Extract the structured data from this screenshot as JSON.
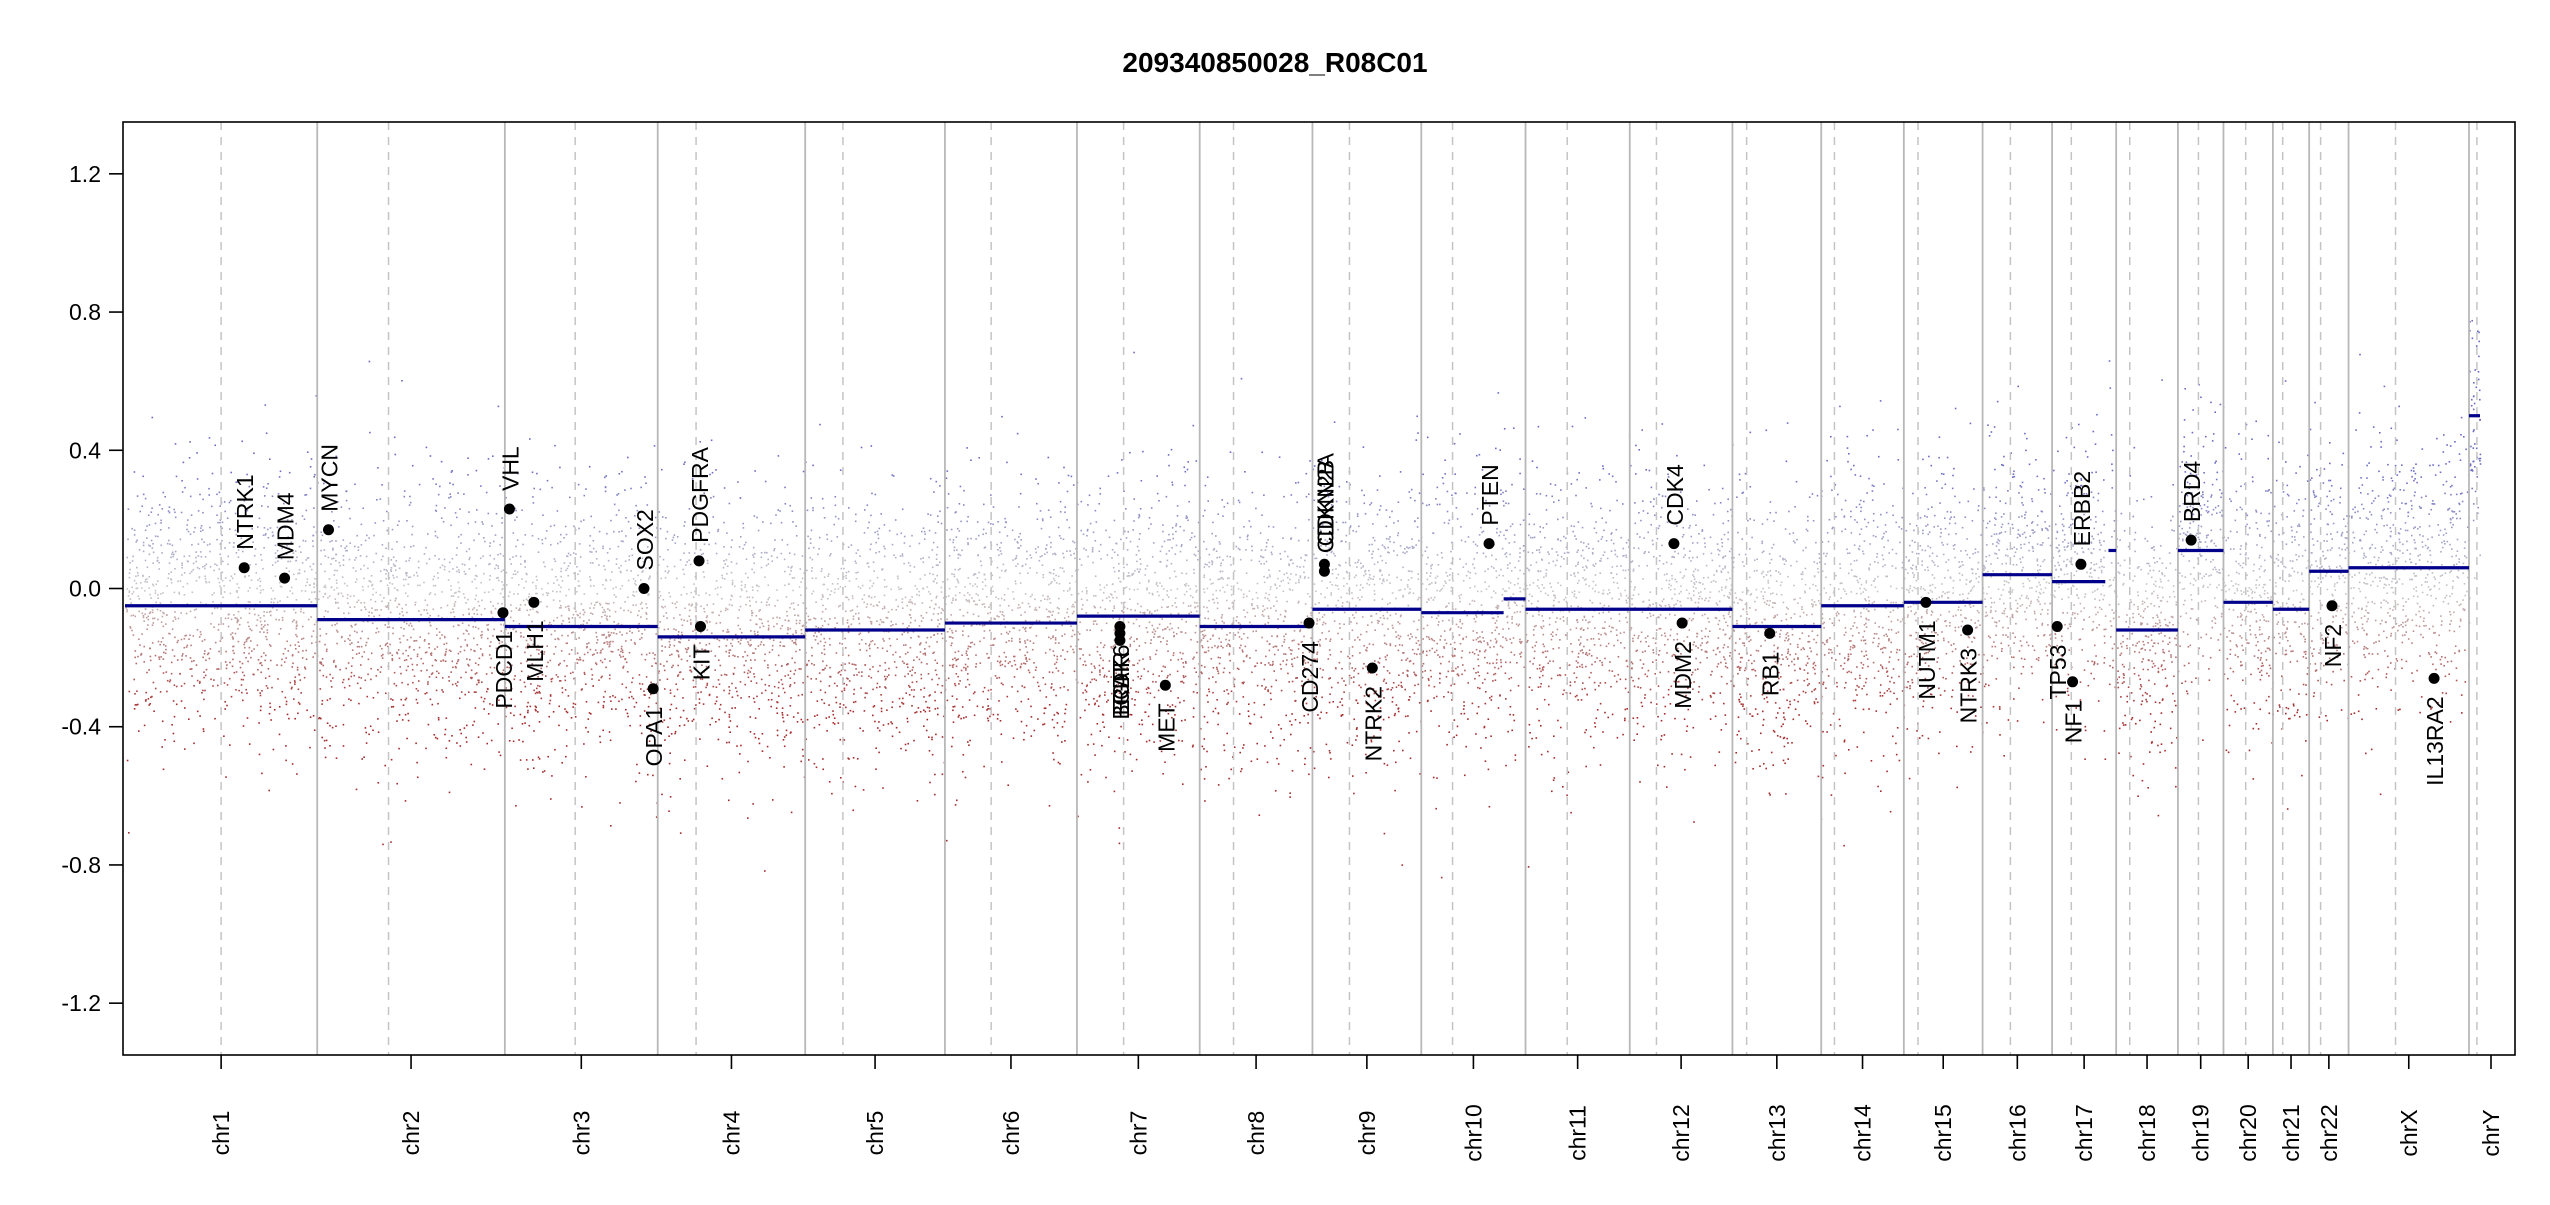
{
  "chart_data": {
    "type": "scatter",
    "title": "209340850028_R08C01",
    "xlabel": "",
    "ylabel": "",
    "ylim": [
      -1.35,
      1.35
    ],
    "y_ticks": [
      -1.2,
      -0.8,
      -0.4,
      0.0,
      0.4,
      0.8,
      1.2
    ],
    "y_tick_labels": [
      "-1.2",
      "-0.8",
      "-0.4",
      "0.0",
      "0.4",
      "0.8",
      "1.2"
    ],
    "chromosomes": [
      {
        "name": "chr1",
        "length": 249,
        "centromere": 0.5
      },
      {
        "name": "chr2",
        "length": 243,
        "centromere": 0.38
      },
      {
        "name": "chr3",
        "length": 198,
        "centromere": 0.46
      },
      {
        "name": "chr4",
        "length": 191,
        "centromere": 0.26
      },
      {
        "name": "chr5",
        "length": 181,
        "centromere": 0.27
      },
      {
        "name": "chr6",
        "length": 171,
        "centromere": 0.35
      },
      {
        "name": "chr7",
        "length": 159,
        "centromere": 0.38
      },
      {
        "name": "chr8",
        "length": 146,
        "centromere": 0.3
      },
      {
        "name": "chr9",
        "length": 141,
        "centromere": 0.34
      },
      {
        "name": "chr10",
        "length": 135,
        "centromere": 0.3
      },
      {
        "name": "chr11",
        "length": 135,
        "centromere": 0.4
      },
      {
        "name": "chr12",
        "length": 133,
        "centromere": 0.26
      },
      {
        "name": "chr13",
        "length": 115,
        "centromere": 0.16
      },
      {
        "name": "chr14",
        "length": 107,
        "centromere": 0.16
      },
      {
        "name": "chr15",
        "length": 102,
        "centromere": 0.18
      },
      {
        "name": "chr16",
        "length": 90,
        "centromere": 0.4
      },
      {
        "name": "chr17",
        "length": 83,
        "centromere": 0.3
      },
      {
        "name": "chr18",
        "length": 80,
        "centromere": 0.22
      },
      {
        "name": "chr19",
        "length": 59,
        "centromere": 0.45
      },
      {
        "name": "chr20",
        "length": 64,
        "centromere": 0.45
      },
      {
        "name": "chr21",
        "length": 47,
        "centromere": 0.27
      },
      {
        "name": "chr22",
        "length": 51,
        "centromere": 0.29
      },
      {
        "name": "chrX",
        "length": 156,
        "centromere": 0.39
      },
      {
        "name": "chrY",
        "length": 57,
        "centromere": 0.18
      }
    ],
    "segments": [
      {
        "chr": "chr1",
        "start": 0.0,
        "end": 1.0,
        "value": -0.05
      },
      {
        "chr": "chr2",
        "start": 0.0,
        "end": 1.0,
        "value": -0.09
      },
      {
        "chr": "chr3",
        "start": 0.0,
        "end": 1.0,
        "value": -0.11
      },
      {
        "chr": "chr4",
        "start": 0.0,
        "end": 1.0,
        "value": -0.14
      },
      {
        "chr": "chr5",
        "start": 0.0,
        "end": 1.0,
        "value": -0.12
      },
      {
        "chr": "chr6",
        "start": 0.0,
        "end": 1.0,
        "value": -0.1
      },
      {
        "chr": "chr7",
        "start": 0.0,
        "end": 1.0,
        "value": -0.08
      },
      {
        "chr": "chr8",
        "start": 0.0,
        "end": 1.0,
        "value": -0.11
      },
      {
        "chr": "chr9",
        "start": 0.0,
        "end": 1.0,
        "value": -0.06
      },
      {
        "chr": "chr10",
        "start": 0.0,
        "end": 0.79,
        "value": -0.07
      },
      {
        "chr": "chr10",
        "start": 0.79,
        "end": 1.0,
        "value": -0.03
      },
      {
        "chr": "chr11",
        "start": 0.0,
        "end": 1.0,
        "value": -0.06
      },
      {
        "chr": "chr12",
        "start": 0.0,
        "end": 1.0,
        "value": -0.06
      },
      {
        "chr": "chr13",
        "start": 0.0,
        "end": 1.0,
        "value": -0.11
      },
      {
        "chr": "chr14",
        "start": 0.0,
        "end": 1.0,
        "value": -0.05
      },
      {
        "chr": "chr15",
        "start": 0.0,
        "end": 1.0,
        "value": -0.04
      },
      {
        "chr": "chr16",
        "start": 0.0,
        "end": 1.0,
        "value": 0.04
      },
      {
        "chr": "chr17",
        "start": 0.0,
        "end": 0.83,
        "value": 0.02
      },
      {
        "chr": "chr17",
        "start": 0.88,
        "end": 1.0,
        "value": 0.11
      },
      {
        "chr": "chr18",
        "start": 0.0,
        "end": 1.0,
        "value": -0.12
      },
      {
        "chr": "chr19",
        "start": 0.0,
        "end": 1.0,
        "value": 0.11
      },
      {
        "chr": "chr20",
        "start": 0.0,
        "end": 1.0,
        "value": -0.04
      },
      {
        "chr": "chr21",
        "start": 0.0,
        "end": 1.0,
        "value": -0.06
      },
      {
        "chr": "chr22",
        "start": 0.0,
        "end": 1.0,
        "value": 0.05
      },
      {
        "chrs": "chrX",
        "chr": "chrX",
        "start": 0.0,
        "end": 1.0,
        "value": 0.06
      },
      {
        "chr": "chrY",
        "start": 0.0,
        "end": 0.25,
        "value": 0.5
      }
    ],
    "genes": [
      {
        "name": "NTRK1",
        "chr": "chr1",
        "pos": 0.62,
        "value": 0.06,
        "label_side": "above"
      },
      {
        "name": "MDM4",
        "chr": "chr1",
        "pos": 0.83,
        "value": 0.03,
        "label_side": "above"
      },
      {
        "name": "MYCN",
        "chr": "chr2",
        "pos": 0.06,
        "value": 0.17,
        "label_side": "above"
      },
      {
        "name": "PDCD1",
        "chr": "chr2",
        "pos": 0.99,
        "value": -0.07,
        "label_side": "below"
      },
      {
        "name": "VHL",
        "chr": "chr3",
        "pos": 0.03,
        "value": 0.23,
        "label_side": "above"
      },
      {
        "name": "MLH1",
        "chr": "chr3",
        "pos": 0.19,
        "value": -0.04,
        "label_side": "below"
      },
      {
        "name": "SOX2",
        "chr": "chr3",
        "pos": 0.91,
        "value": 0.0,
        "label_side": "above"
      },
      {
        "name": "OPA1",
        "chr": "chr3",
        "pos": 0.97,
        "value": -0.29,
        "label_side": "below"
      },
      {
        "name": "PDGFRA",
        "chr": "chr4",
        "pos": 0.28,
        "value": 0.08,
        "label_side": "above"
      },
      {
        "name": "KIT",
        "chr": "chr4",
        "pos": 0.29,
        "value": -0.11,
        "label_side": "below"
      },
      {
        "name": "EGFR",
        "chr": "chr7",
        "pos": 0.35,
        "value": -0.13,
        "label_side": "below"
      },
      {
        "name": "CDK6",
        "chr": "chr7",
        "pos": 0.35,
        "value": -0.11,
        "label_side": "below"
      },
      {
        "name": "BRAF",
        "chr": "chr7",
        "pos": 0.35,
        "value": -0.15,
        "label_side": "below"
      },
      {
        "name": "MET",
        "chr": "chr7",
        "pos": 0.72,
        "value": -0.28,
        "label_side": "below"
      },
      {
        "name": "CD274",
        "chr": "chr8",
        "pos": 0.97,
        "value": -0.1,
        "label_side": "below"
      },
      {
        "name": "CDKN2A",
        "chr": "chr9",
        "pos": 0.11,
        "value": 0.07,
        "label_side": "above"
      },
      {
        "name": "CDKN2B",
        "chr": "chr9",
        "pos": 0.11,
        "value": 0.05,
        "label_side": "above"
      },
      {
        "name": "NTRK2",
        "chr": "chr9",
        "pos": 0.55,
        "value": -0.23,
        "label_side": "below"
      },
      {
        "name": "PTEN",
        "chr": "chr10",
        "pos": 0.65,
        "value": 0.13,
        "label_side": "above"
      },
      {
        "name": "CDK4",
        "chr": "chr12",
        "pos": 0.43,
        "value": 0.13,
        "label_side": "above"
      },
      {
        "name": "MDM2",
        "chr": "chr12",
        "pos": 0.51,
        "value": -0.1,
        "label_side": "below"
      },
      {
        "name": "RB1",
        "chr": "chr13",
        "pos": 0.42,
        "value": -0.13,
        "label_side": "below"
      },
      {
        "name": "NUTM1",
        "chr": "chr15",
        "pos": 0.28,
        "value": -0.04,
        "label_side": "below"
      },
      {
        "name": "NTRK3",
        "chr": "chr15",
        "pos": 0.81,
        "value": -0.12,
        "label_side": "below"
      },
      {
        "name": "TP53",
        "chr": "chr17",
        "pos": 0.08,
        "value": -0.11,
        "label_side": "below"
      },
      {
        "name": "NF1",
        "chr": "chr17",
        "pos": 0.32,
        "value": -0.27,
        "label_side": "below"
      },
      {
        "name": "ERBB2",
        "chr": "chr17",
        "pos": 0.45,
        "value": 0.07,
        "label_side": "above"
      },
      {
        "name": "BRD4",
        "chr": "chr19",
        "pos": 0.29,
        "value": 0.14,
        "label_side": "above"
      },
      {
        "name": "NF2",
        "chr": "chr22",
        "pos": 0.58,
        "value": -0.05,
        "label_side": "below"
      },
      {
        "name": "IL13RA2",
        "chr": "chrX",
        "pos": 0.71,
        "value": -0.26,
        "label_side": "below"
      }
    ],
    "probe_colors": {
      "low": "#a52a2a",
      "mid": "#c8c8c8",
      "high": "#6b6bc6"
    },
    "segment_color": "#00008b",
    "gene_point_color": "#000000",
    "grid": false,
    "legend": "none"
  }
}
